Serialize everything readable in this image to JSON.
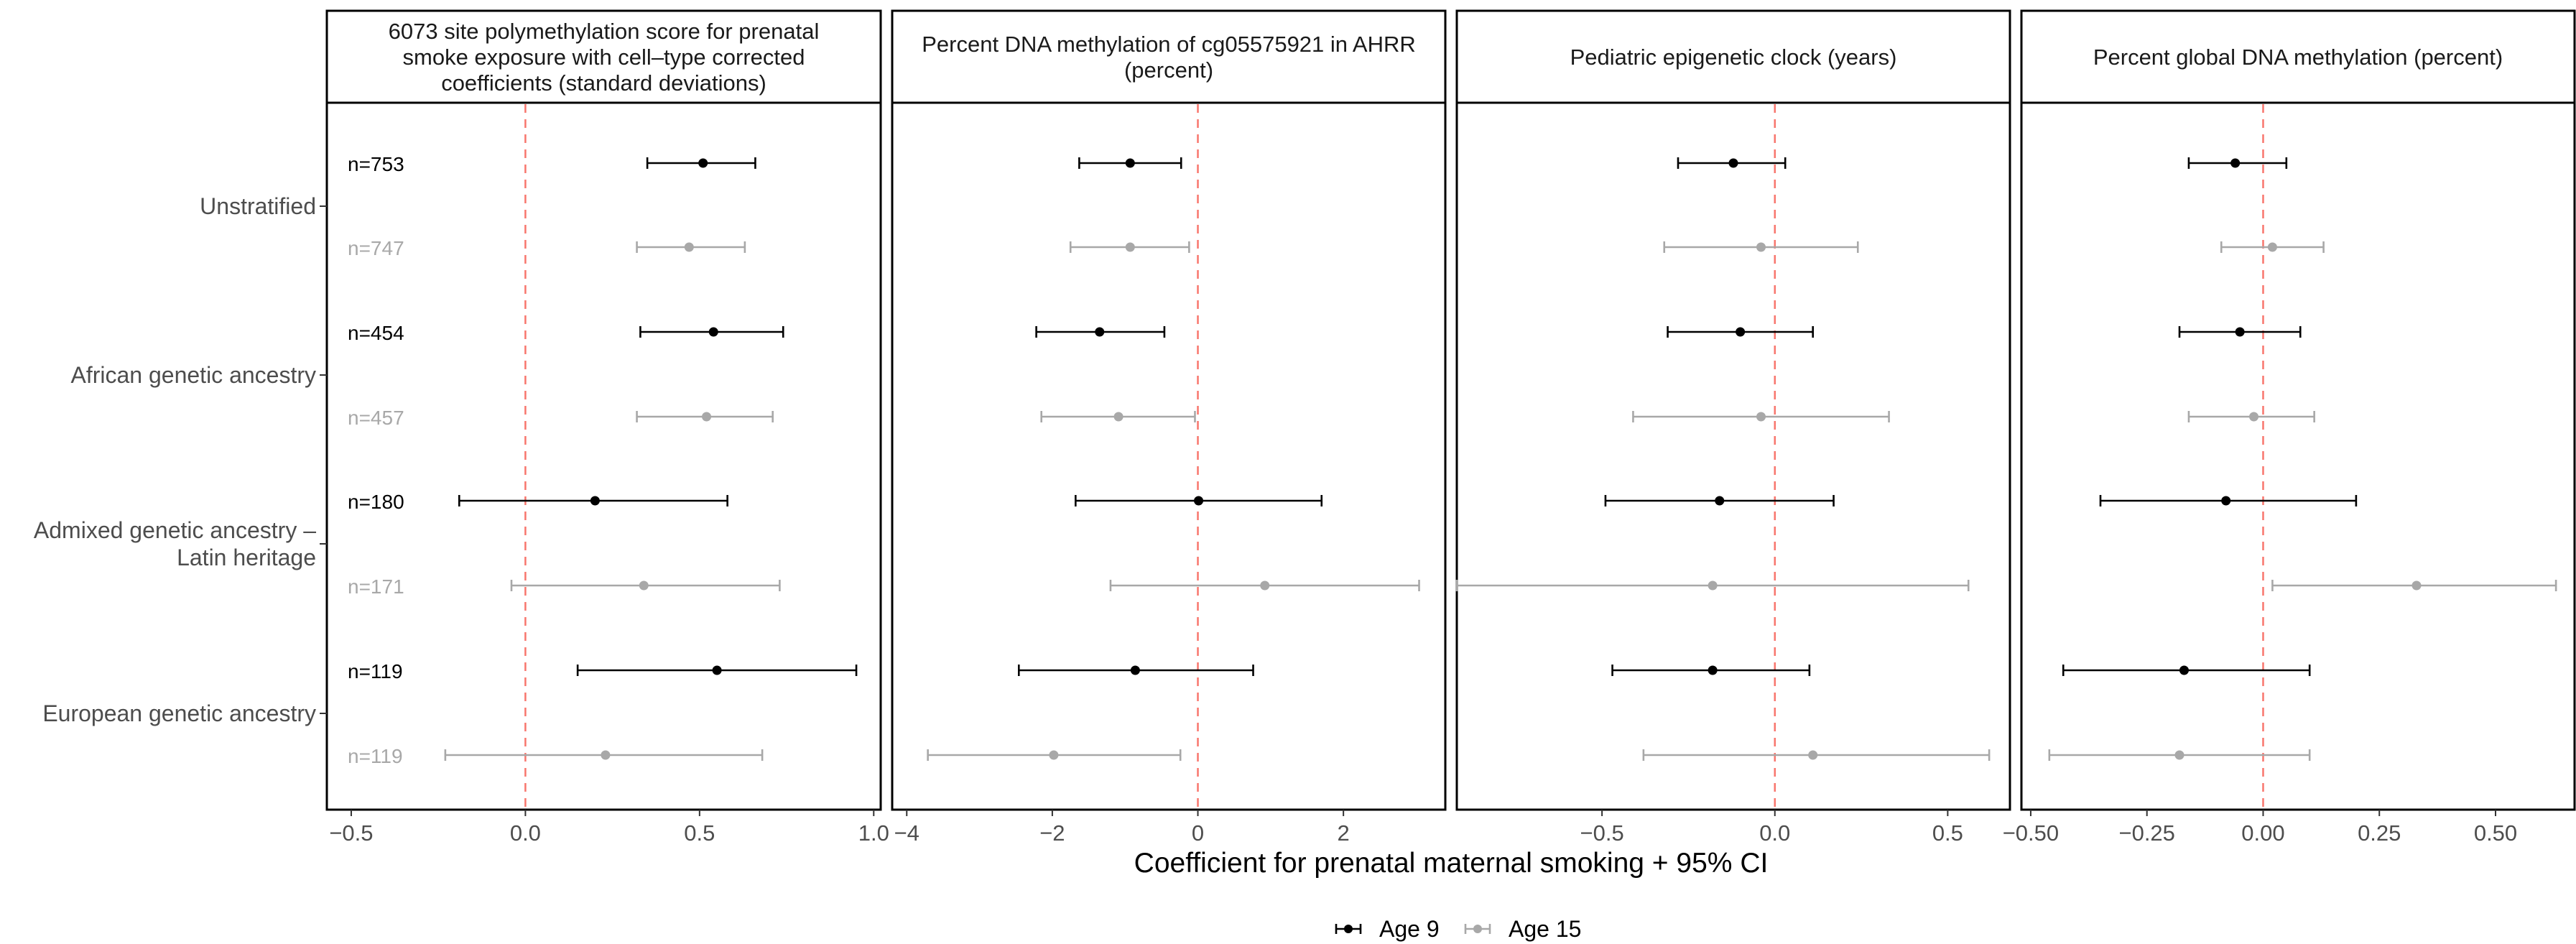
{
  "chart_data": {
    "type": "forest",
    "xlabel": "Coefficient for prenatal maternal smoking + 95% CI",
    "rows": [
      {
        "group": "Unstratified",
        "n_age9": "n=753",
        "n_age15": "n=747"
      },
      {
        "group": "African genetic ancestry",
        "n_age9": "n=454",
        "n_age15": "n=457"
      },
      {
        "group": "Admixed genetic ancestry –\nLatin heritage",
        "n_age9": "n=180",
        "n_age15": "n=171"
      },
      {
        "group": "European genetic ancestry",
        "n_age9": "n=119",
        "n_age15": "n=119"
      }
    ],
    "series": [
      {
        "name": "Age 9",
        "color": "#000000"
      },
      {
        "name": "Age 15",
        "color": "#a8a8a8"
      }
    ],
    "reference_line": {
      "x": 0,
      "color": "#f8766d",
      "style": "dashed"
    },
    "legend": {
      "position": "bottom"
    },
    "panels": [
      {
        "title": "6073 site polymethylation score for prenatal\nsmoke exposure with cell–type corrected\ncoefficients (standard deviations)",
        "xlim": [
          -0.57,
          1.02
        ],
        "ticks": [
          -0.5,
          0.0,
          0.5,
          1.0
        ],
        "tick_labels": [
          "−0.5",
          "0.0",
          "0.5",
          "1.0"
        ],
        "age9": [
          {
            "est": 0.51,
            "lo": 0.35,
            "hi": 0.66
          },
          {
            "est": 0.54,
            "lo": 0.33,
            "hi": 0.74
          },
          {
            "est": 0.2,
            "lo": -0.19,
            "hi": 0.58
          },
          {
            "est": 0.55,
            "lo": 0.15,
            "hi": 0.95
          }
        ],
        "age15": [
          {
            "est": 0.47,
            "lo": 0.32,
            "hi": 0.63
          },
          {
            "est": 0.52,
            "lo": 0.32,
            "hi": 0.71
          },
          {
            "est": 0.34,
            "lo": -0.04,
            "hi": 0.73
          },
          {
            "est": 0.23,
            "lo": -0.23,
            "hi": 0.68
          }
        ]
      },
      {
        "title": "Percent DNA methylation of cg05575921 in AHRR\n(percent)",
        "xlim": [
          -4.2,
          3.4
        ],
        "ticks": [
          -4,
          -2,
          0,
          2
        ],
        "tick_labels": [
          "−4",
          "−2",
          "0",
          "2"
        ],
        "age9": [
          {
            "est": -0.93,
            "lo": -1.63,
            "hi": -0.23
          },
          {
            "est": -1.35,
            "lo": -2.22,
            "hi": -0.46
          },
          {
            "est": 0.01,
            "lo": -1.68,
            "hi": 1.7
          },
          {
            "est": -0.86,
            "lo": -2.46,
            "hi": 0.76
          }
        ],
        "age15": [
          {
            "est": -0.93,
            "lo": -1.75,
            "hi": -0.12
          },
          {
            "est": -1.09,
            "lo": -2.15,
            "hi": -0.04
          },
          {
            "est": 0.92,
            "lo": -1.2,
            "hi": 3.04
          },
          {
            "est": -1.98,
            "lo": -3.71,
            "hi": -0.24
          }
        ]
      },
      {
        "title": "Pediatric epigenetic clock (years)",
        "xlim": [
          -0.92,
          0.68
        ],
        "ticks": [
          -0.5,
          0.0,
          0.5
        ],
        "tick_labels": [
          "−0.5",
          "0.0",
          "0.5"
        ],
        "age9": [
          {
            "est": -0.12,
            "lo": -0.28,
            "hi": 0.03
          },
          {
            "est": -0.1,
            "lo": -0.31,
            "hi": 0.11
          },
          {
            "est": -0.16,
            "lo": -0.49,
            "hi": 0.17
          },
          {
            "est": -0.18,
            "lo": -0.47,
            "hi": 0.1
          }
        ],
        "age15": [
          {
            "est": -0.04,
            "lo": -0.32,
            "hi": 0.24
          },
          {
            "est": -0.04,
            "lo": -0.41,
            "hi": 0.33
          },
          {
            "est": -0.18,
            "lo": -0.92,
            "hi": 0.56
          },
          {
            "est": 0.11,
            "lo": -0.38,
            "hi": 0.62
          }
        ]
      },
      {
        "title": "Percent global DNA methylation (percent)",
        "xlim": [
          -0.52,
          0.67
        ],
        "ticks": [
          -0.5,
          -0.25,
          0.0,
          0.25,
          0.5
        ],
        "tick_labels": [
          "−0.50",
          "−0.25",
          "0.00",
          "0.25",
          "0.50"
        ],
        "age9": [
          {
            "est": -0.06,
            "lo": -0.16,
            "hi": 0.05
          },
          {
            "est": -0.05,
            "lo": -0.18,
            "hi": 0.08
          },
          {
            "est": -0.08,
            "lo": -0.35,
            "hi": 0.2
          },
          {
            "est": -0.17,
            "lo": -0.43,
            "hi": 0.1
          }
        ],
        "age15": [
          {
            "est": 0.02,
            "lo": -0.09,
            "hi": 0.13
          },
          {
            "est": -0.02,
            "lo": -0.16,
            "hi": 0.11
          },
          {
            "est": 0.33,
            "lo": 0.02,
            "hi": 0.63
          },
          {
            "est": -0.18,
            "lo": -0.46,
            "hi": 0.1
          }
        ]
      }
    ]
  }
}
